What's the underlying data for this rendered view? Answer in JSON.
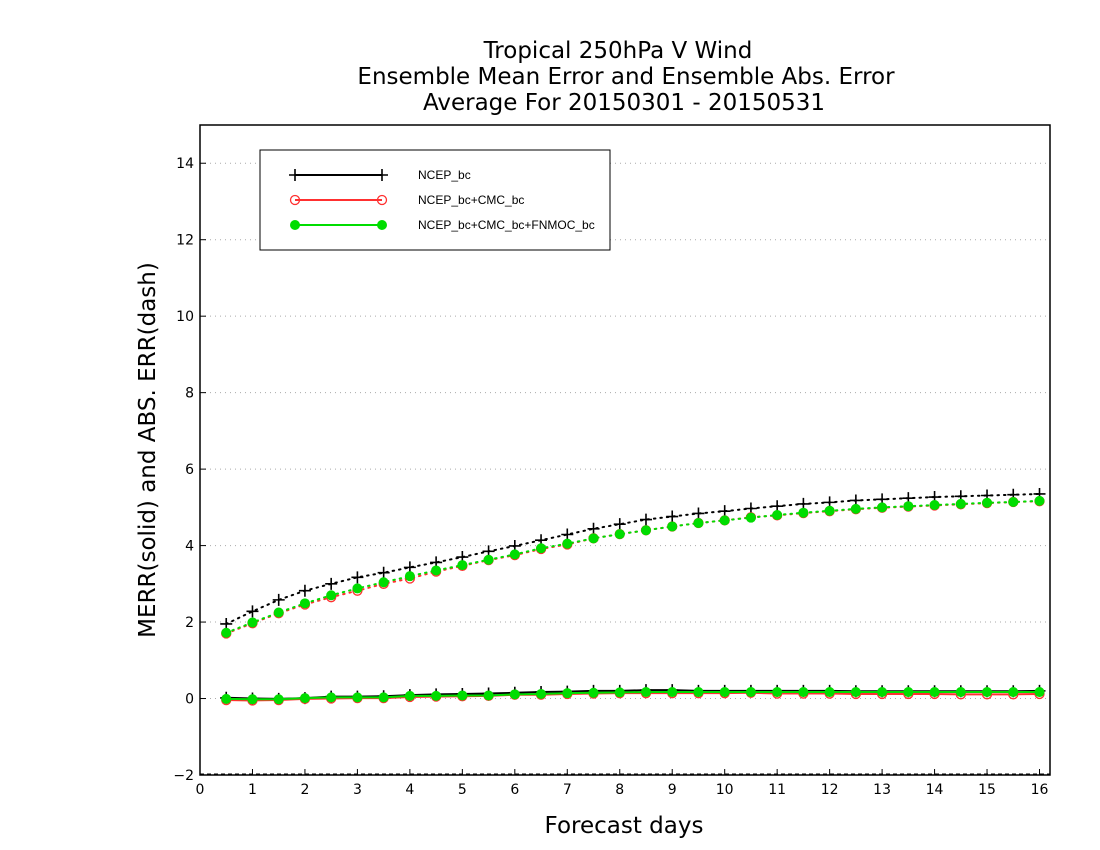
{
  "chart_data": {
    "type": "line",
    "title": [
      "Tropical 250hPa V Wind",
      "Ensemble Mean Error and Ensemble Abs. Error",
      "Average For 20150301 - 20150531"
    ],
    "xlabel": "Forecast days",
    "ylabel": "MERR(solid) and ABS. ERR(dash)",
    "xlim": [
      0,
      16.2
    ],
    "ylim": [
      -2,
      15
    ],
    "xticks": [
      0,
      1,
      2,
      3,
      4,
      5,
      6,
      7,
      8,
      9,
      10,
      11,
      12,
      13,
      14,
      15,
      16
    ],
    "yticks": [
      -2,
      0,
      2,
      4,
      6,
      8,
      10,
      12,
      14
    ],
    "grid": "horizontal dotted",
    "legend_position": "top-left",
    "x": [
      0.5,
      1,
      1.5,
      2,
      2.5,
      3,
      3.5,
      4,
      4.5,
      5,
      5.5,
      6,
      6.5,
      7,
      7.5,
      8,
      8.5,
      9,
      9.5,
      10,
      10.5,
      11,
      11.5,
      12,
      12.5,
      13,
      13.5,
      14,
      14.5,
      15,
      15.5,
      16
    ],
    "series": [
      {
        "name": "NCEP_bc",
        "color": "#000000",
        "marker": "plus",
        "merr": [
          0.02,
          0.0,
          -0.01,
          0.01,
          0.05,
          0.05,
          0.06,
          0.09,
          0.11,
          0.12,
          0.13,
          0.15,
          0.17,
          0.18,
          0.2,
          0.2,
          0.22,
          0.22,
          0.2,
          0.2,
          0.2,
          0.2,
          0.2,
          0.2,
          0.19,
          0.19,
          0.19,
          0.19,
          0.19,
          0.19,
          0.19,
          0.2
        ],
        "abs_err": [
          1.95,
          2.28,
          2.58,
          2.82,
          3.0,
          3.17,
          3.29,
          3.43,
          3.56,
          3.7,
          3.85,
          3.99,
          4.14,
          4.29,
          4.44,
          4.56,
          4.68,
          4.76,
          4.84,
          4.9,
          4.97,
          5.03,
          5.09,
          5.13,
          5.18,
          5.21,
          5.24,
          5.27,
          5.29,
          5.31,
          5.33,
          5.35
        ]
      },
      {
        "name": "NCEP_bc+CMC_bc",
        "color": "#ff3030",
        "marker": "open-circle",
        "merr": [
          -0.04,
          -0.05,
          -0.04,
          -0.01,
          0.0,
          0.01,
          0.01,
          0.04,
          0.05,
          0.06,
          0.07,
          0.1,
          0.1,
          0.12,
          0.13,
          0.14,
          0.14,
          0.14,
          0.14,
          0.14,
          0.15,
          0.13,
          0.13,
          0.13,
          0.12,
          0.12,
          0.12,
          0.12,
          0.11,
          0.11,
          0.11,
          0.12
        ],
        "abs_err": [
          1.7,
          1.97,
          2.23,
          2.46,
          2.65,
          2.82,
          3.0,
          3.14,
          3.32,
          3.47,
          3.62,
          3.75,
          3.91,
          4.03,
          4.19,
          4.3,
          4.4,
          4.5,
          4.59,
          4.66,
          4.74,
          4.79,
          4.85,
          4.9,
          4.95,
          4.99,
          5.02,
          5.05,
          5.08,
          5.11,
          5.14,
          5.16
        ]
      },
      {
        "name": "NCEP_bc+CMC_bc+FNMOC_bc",
        "color": "#00dd00",
        "marker": "filled-circle",
        "merr": [
          -0.01,
          -0.02,
          -0.02,
          0.01,
          0.03,
          0.03,
          0.03,
          0.07,
          0.07,
          0.08,
          0.08,
          0.11,
          0.12,
          0.14,
          0.15,
          0.16,
          0.17,
          0.17,
          0.17,
          0.17,
          0.17,
          0.17,
          0.17,
          0.17,
          0.17,
          0.17,
          0.17,
          0.17,
          0.17,
          0.17,
          0.17,
          0.17
        ],
        "abs_err": [
          1.72,
          1.99,
          2.25,
          2.49,
          2.7,
          2.88,
          3.04,
          3.2,
          3.35,
          3.49,
          3.63,
          3.77,
          3.93,
          4.05,
          4.19,
          4.3,
          4.4,
          4.5,
          4.59,
          4.66,
          4.73,
          4.8,
          4.86,
          4.91,
          4.96,
          5.0,
          5.03,
          5.06,
          5.09,
          5.12,
          5.14,
          5.17
        ]
      }
    ]
  }
}
